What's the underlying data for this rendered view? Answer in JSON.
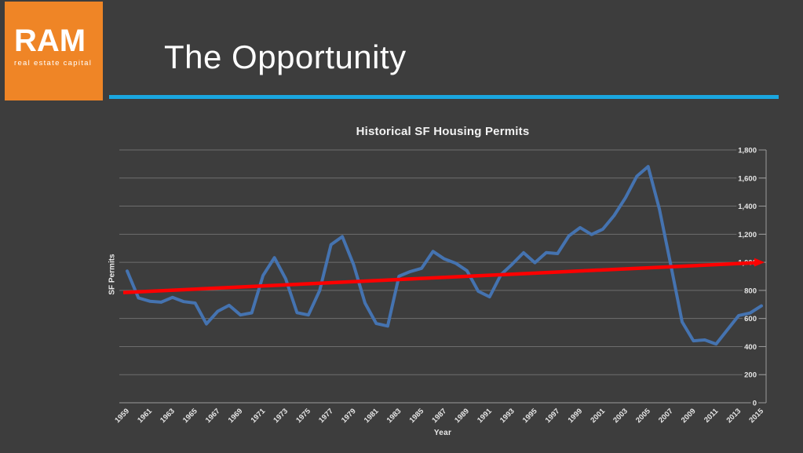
{
  "slide": {
    "background": "#3d3d3d"
  },
  "logo": {
    "title": "RAM",
    "subtitle": "real estate capital",
    "background": "#ef8526",
    "text_color": "#ffffff"
  },
  "header": {
    "title": "The Opportunity",
    "underline_color": "#1aa7e0"
  },
  "chart_data": {
    "type": "line",
    "title": "Historical SF Housing Permits",
    "xlabel": "Year",
    "ylabel": "SF Permits",
    "ylim": [
      0,
      1800
    ],
    "y_tick_step": 200,
    "y_ticks": [
      "0",
      "200",
      "400",
      "600",
      "800",
      "1,000",
      "1,200",
      "1,400",
      "1,600",
      "1,800"
    ],
    "x_tick_labels": [
      "1959",
      "1961",
      "1963",
      "1965",
      "1967",
      "1969",
      "1971",
      "1973",
      "1975",
      "1977",
      "1979",
      "1981",
      "1983",
      "1985",
      "1987",
      "1989",
      "1991",
      "1993",
      "1995",
      "1997",
      "1999",
      "2001",
      "2003",
      "2005",
      "2007",
      "2009",
      "2011",
      "2013",
      "2015"
    ],
    "grid": true,
    "legend": false,
    "axis_side": "right",
    "series": [
      {
        "name": "permits",
        "color": "#4573b0",
        "x_start": 1959,
        "x_end": 2015,
        "values": [
          938,
          746,
          723,
          716,
          750,
          720,
          710,
          561,
          651,
          694,
          625,
          640,
          906,
          1033,
          882,
          641,
          625,
          800,
          1126,
          1183,
          981,
          710,
          564,
          546,
          901,
          934,
          957,
          1078,
          1024,
          994,
          940,
          794,
          754,
          911,
          987,
          1068,
          997,
          1069,
          1062,
          1188,
          1247,
          1198,
          1236,
          1333,
          1460,
          1613,
          1682,
          1378,
          980,
          576,
          441,
          447,
          418,
          520,
          621,
          639,
          690
        ]
      },
      {
        "name": "trend",
        "type": "linear-trend",
        "color": "#fe0000",
        "start_value": 785,
        "end_value": 1000,
        "arrow": true
      }
    ],
    "colors": {
      "grid": "#6e6e6e",
      "axis": "#9a9a9a",
      "tick_text": "#e5e5e5",
      "plot_background": "#3d3d3d"
    }
  }
}
